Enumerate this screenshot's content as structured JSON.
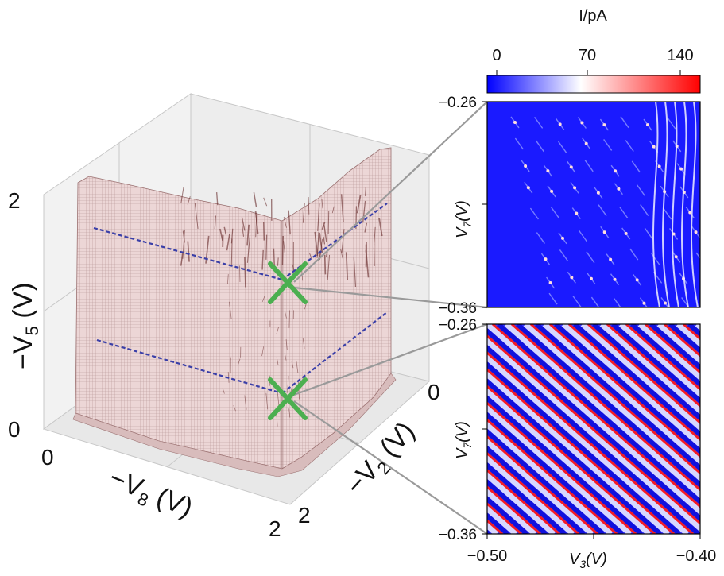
{
  "colors": {
    "surface_fill": "#e9cfcf",
    "surface_dark": "#5a1a1a",
    "trace_line": "#3a3fa8",
    "cross_marker": "#4caf50",
    "map_low": "#0000ff",
    "map_mid": "#ffffff",
    "map_high": "#ff0000",
    "connector": "#9a9a9a"
  },
  "chart_data": [
    {
      "type": "surface3d",
      "axes": {
        "x": {
          "label_base": "−V",
          "label_sub": "8",
          "label_unit": " (V)",
          "ticks": [
            "0",
            "2"
          ],
          "range": [
            0,
            2
          ]
        },
        "y": {
          "label_base": "−V",
          "label_sub": "2",
          "label_unit": " (V)",
          "ticks": [
            "0",
            "2"
          ],
          "range": [
            0,
            2
          ]
        },
        "z": {
          "label_base": "−V",
          "label_sub": "5",
          "label_unit": " (V)",
          "ticks": [
            "0",
            "2"
          ],
          "range": [
            0,
            2
          ]
        }
      },
      "grid": true,
      "markers": [
        {
          "shape": "cross",
          "linked_panel": "upper"
        },
        {
          "shape": "cross",
          "linked_panel": "lower"
        }
      ],
      "traces": [
        "upper dashed line",
        "lower dashed line"
      ]
    },
    {
      "type": "heatmap",
      "panel": "upper",
      "colorbar": {
        "label": "I/pA",
        "ticks": [
          "0",
          "70",
          "140"
        ],
        "range": [
          0,
          160
        ]
      },
      "x": {
        "range": [
          -0.5,
          -0.4
        ]
      },
      "y": {
        "label_base": "V",
        "label_sub": "7",
        "label_unit": "(V)",
        "ticks": [
          "−0.26",
          "−0.36"
        ],
        "range": [
          -0.36,
          -0.26
        ]
      },
      "pattern": "sparse peaks with bright curved lines at right edge"
    },
    {
      "type": "heatmap",
      "panel": "lower",
      "x": {
        "label_base": "V",
        "label_sub": "3",
        "label_unit": "(V)",
        "ticks": [
          "−0.50",
          "−0.40"
        ],
        "range": [
          -0.5,
          -0.4
        ]
      },
      "y": {
        "label_base": "V",
        "label_sub": "7",
        "label_unit": "(V)",
        "ticks": [
          "−0.26",
          "−0.36"
        ],
        "range": [
          -0.36,
          -0.26
        ]
      },
      "pattern": "diagonal stripes of alternating high and low current"
    }
  ]
}
